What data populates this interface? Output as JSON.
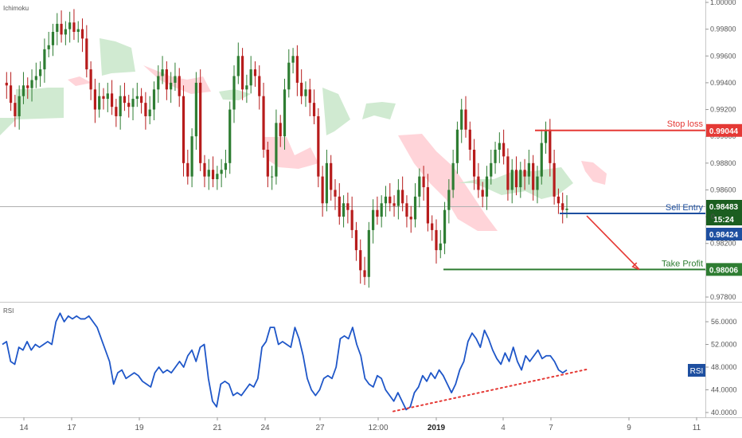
{
  "chart_data": [
    {
      "type": "candlestick",
      "title": "Ichimoku",
      "x_tick_labels": [
        "14",
        "17",
        "19",
        "21",
        "24",
        "27",
        "12:00",
        "2019",
        "4",
        "7",
        "9",
        "11"
      ],
      "y_tick_labels": [
        "1.00000",
        "0.99800",
        "0.99600",
        "0.99400",
        "0.99200",
        "0.99000",
        "0.98800",
        "0.98600",
        "0.98400",
        "0.98200",
        "0.98000",
        "0.97800"
      ],
      "ylim": [
        0.9776,
        1.0003
      ],
      "series": [
        {
          "values": [
            0.994,
            0.9938,
            0.9925,
            0.9915,
            0.993,
            0.9938,
            0.9936,
            0.9942,
            0.9945,
            0.995,
            0.9965,
            0.9968,
            0.9978,
            0.9984,
            0.9976,
            0.998,
            0.9985,
            0.9978,
            0.998,
            0.9973,
            0.995,
            0.9935,
            0.992,
            0.993,
            0.9928,
            0.9932,
            0.9922,
            0.9915,
            0.993,
            0.9925,
            0.9922,
            0.9928,
            0.993,
            0.9925,
            0.9915,
            0.992,
            0.9935,
            0.9945,
            0.995,
            0.9935,
            0.994,
            0.9945,
            0.993,
            0.988,
            0.987,
            0.99,
            0.994,
            0.988,
            0.987,
            0.9875,
            0.9868,
            0.9872,
            0.9875,
            0.988,
            0.992,
            0.9945,
            0.996,
            0.9935,
            0.9938,
            0.995,
            0.9945,
            0.993,
            0.989,
            0.987,
            0.987,
            0.991,
            0.99,
            0.9935,
            0.9955,
            0.996,
            0.994,
            0.993,
            0.9935,
            0.9925,
            0.9915,
            0.987,
            0.985,
            0.988,
            0.986,
            0.9855,
            0.984,
            0.985,
            0.9845,
            0.983,
            0.9815,
            0.98,
            0.9795,
            0.983,
            0.9845,
            0.984,
            0.985,
            0.9855,
            0.985,
            0.9848,
            0.986,
            0.985,
            0.984,
            0.9838,
            0.9855,
            0.987,
            0.9862,
            0.9835,
            0.983,
            0.9815,
            0.982,
            0.9845,
            0.986,
            0.988,
            0.9905,
            0.992,
            0.9905,
            0.989,
            0.987,
            0.986,
            0.9855,
            0.987,
            0.988,
            0.989,
            0.9895,
            0.9885,
            0.986,
            0.9875,
            0.9862,
            0.9875,
            0.987,
            0.988,
            0.986,
            0.987,
            0.9895,
            0.9905,
            0.988,
            0.9855,
            0.985,
            0.9845,
            0.9846
          ]
        },
        {
          "name": "Stop loss",
          "values": [
            0.99044
          ]
        },
        {
          "name": "Sell Entry",
          "values": [
            0.98424
          ]
        },
        {
          "name": "Take Profit",
          "values": [
            0.98006
          ]
        }
      ],
      "price_tags": {
        "stop_loss": "0.99044",
        "last_price": "0.98483",
        "countdown": "15:24",
        "sell_entry": "0.98424",
        "take_profit": "0.98006",
        "axis_marker": "0"
      },
      "colors": {
        "up": "#26a69a",
        "down": "#ef5350",
        "candle_up": "#2e7d32",
        "candle_down": "#b71c1c",
        "kumo_bull": "#c8e6c9",
        "kumo_bear": "#ffcdd2",
        "stop": "#e53935",
        "entry": "#1e4fa0",
        "profit": "#2e7d32"
      }
    },
    {
      "type": "line",
      "title": "RSI",
      "y_tick_labels": [
        "56.0000",
        "52.0000",
        "48.0000",
        "44.0000",
        "40.0000"
      ],
      "ylim": [
        39.5,
        58
      ],
      "series": [
        {
          "name": "RSI",
          "values": [
            52,
            52.5,
            49,
            48.5,
            51.5,
            51,
            52.5,
            51,
            52,
            51.5,
            52,
            52.5,
            52,
            56,
            57.5,
            56,
            57,
            56.5,
            57,
            56.5,
            56.5,
            57,
            56,
            55,
            53,
            51,
            49,
            45,
            47,
            47.5,
            46,
            46.5,
            47,
            46.5,
            45.5,
            45,
            44.5,
            47,
            48,
            47,
            47.5,
            47,
            48,
            49,
            48,
            50,
            51,
            49,
            51.5,
            52,
            46,
            42,
            41,
            45,
            45.5,
            45,
            43,
            43.5,
            43,
            44,
            45,
            44.5,
            46,
            51.5,
            52.5,
            55,
            55,
            52,
            52.5,
            52,
            51.5,
            55,
            53,
            50,
            46,
            44,
            43,
            44,
            46,
            46.5,
            46,
            48,
            53,
            53.5,
            53,
            55,
            52,
            50,
            46,
            45,
            44.5,
            46.5,
            46,
            44,
            43,
            42,
            43.5,
            42,
            40.5,
            41,
            43.5,
            44.5,
            46.5,
            45.5,
            47,
            46,
            47.5,
            46.5,
            45,
            43.5,
            45,
            47.5,
            49,
            52.5,
            54,
            53,
            51.5,
            54.5,
            53,
            51,
            49.5,
            48.5,
            50.5,
            49,
            51.5,
            49,
            47.5,
            50,
            49,
            50,
            51,
            49.5,
            50,
            50,
            49,
            47.5,
            47,
            47.5
          ]
        },
        {
          "name": "trendline",
          "values": [
            40.2,
            47.6
          ]
        }
      ],
      "value_label": "RSI"
    }
  ]
}
